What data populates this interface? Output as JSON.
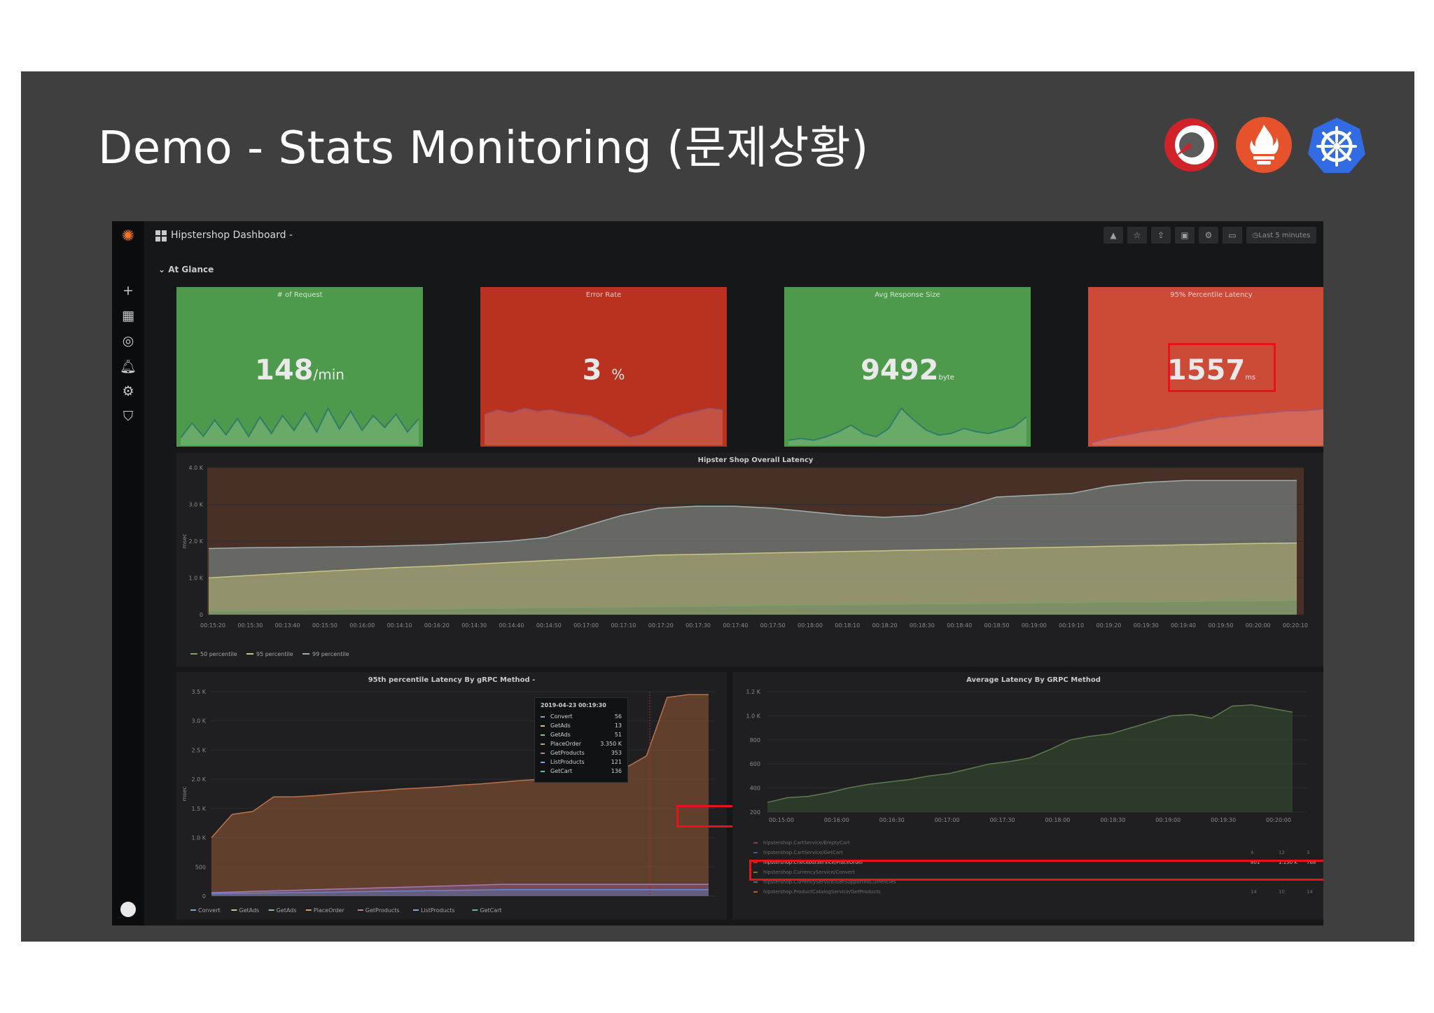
{
  "slide": {
    "title": "Demo - Stats Monitoring (문제상황)",
    "logos": [
      "jaeger-logo",
      "prometheus-logo",
      "kubernetes-logo"
    ]
  },
  "grafana": {
    "dashboard_title": "Hipstershop Dashboard -",
    "row_title": "At Glance",
    "time_picker": "Last 5 minutes",
    "sidebar_icons": [
      "grafana-logo",
      "plus-icon",
      "dashboards-icon",
      "explore-icon",
      "alert-bell-icon",
      "gear-icon",
      "shield-icon",
      "user-avatar"
    ],
    "stats": [
      {
        "title": "# of Request",
        "value": "148",
        "unit": "/min",
        "color": "#4e9a4c"
      },
      {
        "title": "Error Rate",
        "value": "3",
        "unit": "%",
        "color": "#b8321f"
      },
      {
        "title": "Avg Response Size",
        "value": "9492",
        "unit": "byte",
        "color": "#4e9a4c"
      },
      {
        "title": "95% Percentile Latency",
        "value": "1557",
        "unit": "ms",
        "color": "#cc4b37"
      }
    ],
    "overall_latency": {
      "title": "Hipster Shop Overall Latency",
      "ylabel": "msec",
      "yticks": [
        "4.0 K",
        "3.0 K",
        "2.0 K",
        "1.0 K",
        "0"
      ],
      "xticks": [
        "00:15:20",
        "00:15:30",
        "00:13:40",
        "00:15:50",
        "00:16:00",
        "00:14:10",
        "00:16:20",
        "00:14:30",
        "00:14:40",
        "00:14:50",
        "00:17:00",
        "00:17:10",
        "00:17:20",
        "00:17:30",
        "00:17:40",
        "00:17:50",
        "00:18:00",
        "00:18:10",
        "00:18:20",
        "00:18:30",
        "00:18:40",
        "00:18:50",
        "00:19:00",
        "00:19:10",
        "00:19:20",
        "00:19:30",
        "00:19:40",
        "00:19:50",
        "00:20:00",
        "00:20:10"
      ],
      "legend": [
        "50 percentile",
        "95 percentile",
        "99 percentile"
      ]
    },
    "grpc_95": {
      "title": "95th percentile Latency By gRPC Method -",
      "ylabel": "msec",
      "yticks": [
        "3.5 K",
        "3.0 K",
        "2.5 K",
        "2.0 K",
        "1.5 K",
        "1.0 K",
        "500",
        "0"
      ],
      "legend": [
        "Convert",
        "GetAds",
        "GetAds",
        "PlaceOrder",
        "GetProducts",
        "ListProducts",
        "GetCart"
      ],
      "tooltip": {
        "time": "2019-04-23 00:19:30",
        "rows": [
          {
            "name": "Convert",
            "value": "56"
          },
          {
            "name": "GetAds",
            "value": "13"
          },
          {
            "name": "GetAds",
            "value": "51"
          },
          {
            "name": "PlaceOrder",
            "value": "3.350 K"
          },
          {
            "name": "GetProducts",
            "value": "353"
          },
          {
            "name": "ListProducts",
            "value": "121"
          },
          {
            "name": "GetCart",
            "value": "136"
          }
        ]
      }
    },
    "avg_grpc": {
      "title": "Average Latency By GRPC Method",
      "yticks": [
        "1.2 K",
        "1.0 K",
        "800",
        "600",
        "400",
        "200"
      ],
      "xticks": [
        "00:15:00",
        "00:16:00",
        "00:16:30",
        "00:17:00",
        "00:17:30",
        "00:18:00",
        "00:18:30",
        "00:19:00",
        "00:19:30",
        "00:20:00"
      ],
      "table_rows": [
        {
          "name": "hipstershop.CartService/EmptyCart",
          "a": "",
          "b": "",
          "c": ""
        },
        {
          "name": "hipstershop.CartService/GetCart",
          "a": "4",
          "b": "12",
          "c": "3"
        },
        {
          "name": "hipstershop.CheckoutService/PlaceOrder",
          "a": "801",
          "b": "1.150 K",
          "c": "768"
        },
        {
          "name": "hipstershop.CurrencyService/Convert",
          "a": "",
          "b": "",
          "c": ""
        },
        {
          "name": "hipstershop.CurrencyService/GetSupportedCurrencies",
          "a": "",
          "b": "",
          "c": ""
        },
        {
          "name": "hipstershop.ProductCatalogService/GetProducts",
          "a": "14",
          "b": "10",
          "c": "14"
        }
      ]
    }
  },
  "chart_data": [
    {
      "type": "area",
      "title": "Hipster Shop Overall Latency",
      "ylabel": "msec",
      "ylim": [
        0,
        4000
      ],
      "series": [
        {
          "name": "50 percentile",
          "values": [
            100,
            110,
            120,
            130,
            140,
            150,
            160,
            170,
            180,
            190,
            200,
            210,
            220,
            230,
            240,
            250,
            260,
            270,
            280,
            290,
            300,
            310,
            320,
            330,
            340,
            350,
            360,
            370,
            380,
            390
          ]
        },
        {
          "name": "95 percentile",
          "values": [
            1000,
            1060,
            1120,
            1180,
            1230,
            1280,
            1320,
            1370,
            1420,
            1470,
            1520,
            1570,
            1620,
            1640,
            1660,
            1680,
            1700,
            1720,
            1740,
            1760,
            1780,
            1800,
            1820,
            1840,
            1860,
            1880,
            1900,
            1920,
            1940,
            1950
          ]
        },
        {
          "name": "99 percentile",
          "values": [
            1800,
            1820,
            1830,
            1840,
            1850,
            1870,
            1900,
            1950,
            2000,
            2100,
            2400,
            2700,
            2900,
            2950,
            2950,
            2900,
            2800,
            2700,
            2650,
            2700,
            2900,
            3200,
            3250,
            3300,
            3500,
            3600,
            3650,
            3650,
            3650,
            3650
          ]
        }
      ]
    },
    {
      "type": "area",
      "title": "95th percentile Latency By gRPC Method",
      "ylabel": "msec",
      "ylim": [
        0,
        3500
      ],
      "series": [
        {
          "name": "PlaceOrder",
          "values": [
            1000,
            1400,
            1450,
            1700,
            1700,
            1720,
            1750,
            1780,
            1800,
            1830,
            1850,
            1870,
            1900,
            1920,
            1950,
            1980,
            2000,
            2050,
            2150,
            2450,
            2200,
            2400,
            3400,
            3450,
            3450
          ]
        },
        {
          "name": "GetProducts",
          "values": [
            60,
            70,
            80,
            90,
            100,
            110,
            120,
            130,
            140,
            150,
            160,
            170,
            180,
            190,
            200,
            200,
            200,
            200,
            200,
            200,
            200,
            200,
            200,
            200,
            200
          ]
        },
        {
          "name": "ListProducts",
          "values": [
            40,
            45,
            50,
            55,
            60,
            65,
            70,
            75,
            80,
            85,
            90,
            95,
            100,
            105,
            110,
            110,
            110,
            110,
            110,
            110,
            110,
            110,
            110,
            110,
            110
          ]
        }
      ]
    },
    {
      "type": "area",
      "title": "Average Latency By GRPC Method",
      "ylim": [
        200,
        1200
      ],
      "series": [
        {
          "name": "PlaceOrder",
          "values": [
            280,
            320,
            330,
            360,
            400,
            430,
            450,
            470,
            500,
            520,
            560,
            600,
            620,
            650,
            720,
            800,
            830,
            850,
            900,
            950,
            1000,
            1010,
            980,
            1080,
            1090,
            1060,
            1030
          ]
        }
      ]
    },
    {
      "type": "area",
      "title": "# of Request",
      "series": [
        {
          "values": [
            10,
            30,
            12,
            34,
            14,
            36,
            12,
            38,
            16,
            40,
            20,
            44,
            18,
            50,
            22,
            46,
            20,
            40,
            24,
            42,
            18,
            36
          ]
        }
      ]
    },
    {
      "type": "area",
      "title": "Error Rate",
      "series": [
        {
          "values": [
            40,
            46,
            42,
            48,
            44,
            46,
            42,
            40,
            38,
            30,
            20,
            10,
            14,
            24,
            34,
            40,
            44,
            48,
            46
          ]
        }
      ]
    },
    {
      "type": "area",
      "title": "Avg Response Size",
      "series": [
        {
          "values": [
            6,
            8,
            6,
            10,
            16,
            24,
            14,
            10,
            20,
            44,
            30,
            18,
            12,
            14,
            20,
            16,
            14,
            18,
            22,
            34
          ]
        }
      ]
    },
    {
      "type": "area",
      "title": "95% Percentile Latency",
      "series": [
        {
          "values": [
            4,
            10,
            14,
            18,
            22,
            24,
            28,
            34,
            38,
            42,
            44,
            46,
            48,
            50,
            52,
            52,
            54,
            56
          ]
        }
      ]
    }
  ]
}
